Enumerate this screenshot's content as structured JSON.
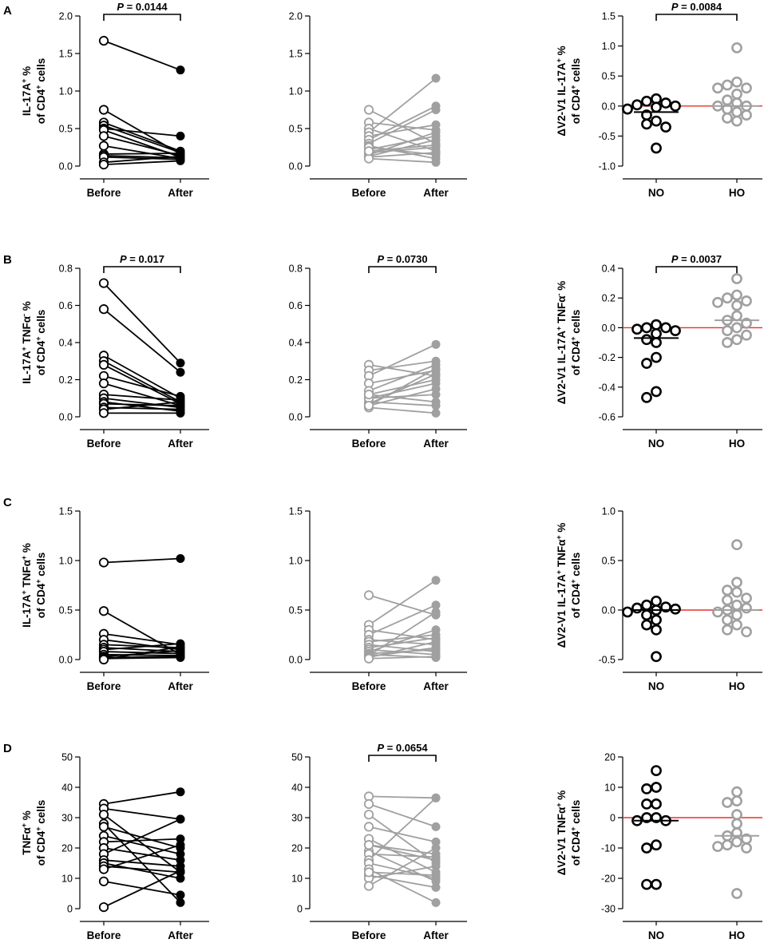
{
  "colors": {
    "no": "#000000",
    "ho": "#a0a0a0",
    "zero_line": "#e8302a"
  },
  "panels": [
    {
      "letter": "A",
      "ylabel_lines": [
        [
          "IL-17A",
          "+",
          " %"
        ],
        [
          "of CD4",
          "+",
          " cells"
        ]
      ],
      "delta_ylabel_lines": [
        [
          "ΔV2-V1 IL-17A",
          "+",
          " %"
        ],
        [
          "of CD4",
          "+",
          " cells"
        ]
      ],
      "no_pairs": {
        "ylim": [
          0,
          2.0
        ],
        "ticks": [
          "0.0",
          "0.5",
          "1.0",
          "1.5",
          "2.0"
        ],
        "categories": [
          "Before",
          "After"
        ],
        "pvalue": "0.0144",
        "pairs": [
          [
            1.67,
            1.28
          ],
          [
            0.75,
            0.16
          ],
          [
            0.58,
            0.2
          ],
          [
            0.54,
            0.18
          ],
          [
            0.5,
            0.4
          ],
          [
            0.48,
            0.12
          ],
          [
            0.4,
            0.14
          ],
          [
            0.27,
            0.1
          ],
          [
            0.16,
            0.17
          ],
          [
            0.14,
            0.11
          ],
          [
            0.12,
            0.09
          ],
          [
            0.05,
            0.13
          ],
          [
            0.02,
            0.07
          ]
        ]
      },
      "ho_pairs": {
        "ylim": [
          0,
          2.0
        ],
        "ticks": [
          "0.0",
          "0.5",
          "1.0",
          "1.5",
          "2.0"
        ],
        "categories": [
          "Before",
          "After"
        ],
        "pvalue": "",
        "pairs": [
          [
            0.75,
            0.3
          ],
          [
            0.58,
            0.48
          ],
          [
            0.5,
            0.2
          ],
          [
            0.45,
            1.17
          ],
          [
            0.4,
            0.55
          ],
          [
            0.35,
            0.8
          ],
          [
            0.3,
            0.75
          ],
          [
            0.27,
            0.1
          ],
          [
            0.22,
            0.4
          ],
          [
            0.18,
            0.25
          ],
          [
            0.15,
            0.45
          ],
          [
            0.13,
            0.35
          ],
          [
            0.12,
            0.18
          ],
          [
            0.1,
            0.05
          ],
          [
            0.25,
            0.15
          ],
          [
            0.2,
            0.28
          ]
        ]
      },
      "delta": {
        "ylim": [
          -1.0,
          1.5
        ],
        "ticks": [
          "-1.0",
          "-0.5",
          "0.0",
          "0.5",
          "1.0",
          "1.5"
        ],
        "categories": [
          "NO",
          "HO"
        ],
        "pvalue": "0.0084",
        "no_values": [
          0.12,
          0.08,
          0.05,
          0.02,
          0.0,
          -0.02,
          -0.05,
          -0.15,
          -0.25,
          -0.3,
          -0.35,
          -0.7
        ],
        "ho_values": [
          0.97,
          0.4,
          0.35,
          0.3,
          0.3,
          0.2,
          0.1,
          0.05,
          0.0,
          0.0,
          -0.05,
          -0.1,
          -0.15,
          -0.2,
          -0.25
        ],
        "no_median": -0.1,
        "ho_median": 0.0
      }
    },
    {
      "letter": "B",
      "ylabel_lines": [
        [
          "IL-17A",
          "+",
          " TNFα",
          "-",
          " %"
        ],
        [
          "of CD4",
          "+",
          " cells"
        ]
      ],
      "delta_ylabel_lines": [
        [
          "ΔV2-V1 IL-17A",
          "+",
          " TNFα",
          "-",
          " %"
        ],
        [
          "of CD4",
          "+",
          " cells"
        ]
      ],
      "no_pairs": {
        "ylim": [
          0,
          0.8
        ],
        "ticks": [
          "0.0",
          "0.2",
          "0.4",
          "0.6",
          "0.8"
        ],
        "categories": [
          "Before",
          "After"
        ],
        "pvalue": "0.017",
        "pairs": [
          [
            0.72,
            0.29
          ],
          [
            0.58,
            0.24
          ],
          [
            0.33,
            0.1
          ],
          [
            0.3,
            0.08
          ],
          [
            0.28,
            0.07
          ],
          [
            0.22,
            0.11
          ],
          [
            0.18,
            0.06
          ],
          [
            0.12,
            0.09
          ],
          [
            0.1,
            0.05
          ],
          [
            0.08,
            0.03
          ],
          [
            0.07,
            0.06
          ],
          [
            0.05,
            0.04
          ],
          [
            0.04,
            0.08
          ],
          [
            0.02,
            0.02
          ]
        ]
      },
      "ho_pairs": {
        "ylim": [
          0,
          0.8
        ],
        "ticks": [
          "0.0",
          "0.2",
          "0.4",
          "0.6",
          "0.8"
        ],
        "categories": [
          "Before",
          "After"
        ],
        "pvalue": "0.0730",
        "pairs": [
          [
            0.28,
            0.22
          ],
          [
            0.25,
            0.3
          ],
          [
            0.22,
            0.39
          ],
          [
            0.18,
            0.25
          ],
          [
            0.14,
            0.28
          ],
          [
            0.12,
            0.2
          ],
          [
            0.1,
            0.18
          ],
          [
            0.08,
            0.06
          ],
          [
            0.07,
            0.23
          ],
          [
            0.06,
            0.15
          ],
          [
            0.05,
            0.02
          ],
          [
            0.1,
            0.12
          ],
          [
            0.06,
            0.26
          ],
          [
            0.12,
            0.08
          ]
        ]
      },
      "delta": {
        "ylim": [
          -0.6,
          0.4
        ],
        "ticks": [
          "-0.6",
          "-0.4",
          "-0.2",
          "0.0",
          "0.2",
          "0.4"
        ],
        "categories": [
          "NO",
          "HO"
        ],
        "pvalue": "0.0037",
        "no_values": [
          0.02,
          0.0,
          0.0,
          -0.01,
          -0.02,
          -0.04,
          -0.08,
          -0.1,
          -0.2,
          -0.24,
          -0.43,
          -0.47
        ],
        "ho_values": [
          0.33,
          0.22,
          0.2,
          0.18,
          0.17,
          0.15,
          0.08,
          0.05,
          0.03,
          0.0,
          -0.02,
          -0.05,
          -0.08,
          -0.1
        ],
        "no_median": -0.07,
        "ho_median": 0.05
      }
    },
    {
      "letter": "C",
      "ylabel_lines": [
        [
          "IL-17A",
          "+",
          " TNFα",
          "+",
          " %"
        ],
        [
          "of CD4",
          "+",
          " cells"
        ]
      ],
      "delta_ylabel_lines": [
        [
          "ΔV2-V1 IL-17A",
          "+",
          " TNFα",
          "+",
          " %"
        ],
        [
          "of CD4",
          "+",
          " cells"
        ]
      ],
      "no_pairs": {
        "ylim": [
          0,
          1.5
        ],
        "ticks": [
          "0.0",
          "0.5",
          "1.0",
          "1.5"
        ],
        "categories": [
          "Before",
          "After"
        ],
        "pvalue": "",
        "pairs": [
          [
            0.98,
            1.02
          ],
          [
            0.49,
            0.05
          ],
          [
            0.26,
            0.15
          ],
          [
            0.2,
            0.1
          ],
          [
            0.15,
            0.12
          ],
          [
            0.12,
            0.08
          ],
          [
            0.1,
            0.16
          ],
          [
            0.08,
            0.06
          ],
          [
            0.05,
            0.04
          ],
          [
            0.03,
            0.09
          ],
          [
            0.02,
            0.03
          ],
          [
            0.01,
            0.02
          ],
          [
            0.0,
            0.13
          ]
        ]
      },
      "ho_pairs": {
        "ylim": [
          0,
          1.5
        ],
        "ticks": [
          "0.0",
          "0.5",
          "1.0",
          "1.5"
        ],
        "categories": [
          "Before",
          "After"
        ],
        "pvalue": "",
        "pairs": [
          [
            0.65,
            0.45
          ],
          [
            0.35,
            0.8
          ],
          [
            0.3,
            0.2
          ],
          [
            0.25,
            0.55
          ],
          [
            0.2,
            0.15
          ],
          [
            0.18,
            0.25
          ],
          [
            0.15,
            0.08
          ],
          [
            0.12,
            0.22
          ],
          [
            0.1,
            0.05
          ],
          [
            0.08,
            0.3
          ],
          [
            0.06,
            0.1
          ],
          [
            0.05,
            0.02
          ],
          [
            0.04,
            0.48
          ],
          [
            0.03,
            0.12
          ],
          [
            0.02,
            0.18
          ],
          [
            0.01,
            0.03
          ]
        ]
      },
      "delta": {
        "ylim": [
          -0.5,
          1.0
        ],
        "ticks": [
          "-0.5",
          "0.0",
          "0.5",
          "1.0"
        ],
        "categories": [
          "NO",
          "HO"
        ],
        "pvalue": "",
        "no_values": [
          0.09,
          0.05,
          0.03,
          0.02,
          0.01,
          0.0,
          -0.02,
          -0.05,
          -0.1,
          -0.15,
          -0.2,
          -0.47
        ],
        "ho_values": [
          0.66,
          0.28,
          0.2,
          0.18,
          0.12,
          0.1,
          0.05,
          0.02,
          0.0,
          -0.02,
          -0.05,
          -0.1,
          -0.15,
          -0.2,
          -0.22
        ],
        "no_median": 0.0,
        "ho_median": 0.0
      }
    },
    {
      "letter": "D",
      "ylabel_lines": [
        [
          "TNFα",
          "+",
          " %"
        ],
        [
          "of CD4",
          "+",
          " cells"
        ]
      ],
      "delta_ylabel_lines": [
        [
          "ΔV2-V1 TNFα",
          "+",
          " %"
        ],
        [
          "of CD4",
          "+",
          " cells"
        ]
      ],
      "no_pairs": {
        "ylim": [
          0,
          50
        ],
        "ticks": [
          "0",
          "10",
          "20",
          "30",
          "40",
          "50"
        ],
        "categories": [
          "Before",
          "After"
        ],
        "pvalue": "",
        "pairs": [
          [
            34.5,
            38.5
          ],
          [
            33,
            29.5
          ],
          [
            31,
            12
          ],
          [
            28,
            2
          ],
          [
            27,
            20
          ],
          [
            24,
            18
          ],
          [
            22,
            23
          ],
          [
            20,
            16
          ],
          [
            18,
            29.5
          ],
          [
            16,
            14
          ],
          [
            15,
            10
          ],
          [
            14,
            12
          ],
          [
            13,
            21
          ],
          [
            9,
            4.5
          ],
          [
            0.5,
            12.5
          ]
        ]
      },
      "ho_pairs": {
        "ylim": [
          0,
          50
        ],
        "ticks": [
          "0",
          "10",
          "20",
          "30",
          "40",
          "50"
        ],
        "categories": [
          "Before",
          "After"
        ],
        "pvalue": "0.0654",
        "pairs": [
          [
            37,
            36.5
          ],
          [
            34.5,
            27
          ],
          [
            31,
            15
          ],
          [
            27,
            22
          ],
          [
            23,
            12
          ],
          [
            21,
            16
          ],
          [
            19,
            9
          ],
          [
            18,
            17
          ],
          [
            16,
            36.5
          ],
          [
            15,
            10
          ],
          [
            13,
            2
          ],
          [
            11,
            7
          ],
          [
            10,
            14
          ],
          [
            7.5,
            20
          ],
          [
            12,
            11
          ],
          [
            21,
            18
          ]
        ]
      },
      "delta": {
        "ylim": [
          -30,
          20
        ],
        "ticks": [
          "-30",
          "-20",
          "-10",
          "0",
          "10",
          "20"
        ],
        "categories": [
          "NO",
          "HO"
        ],
        "pvalue": "",
        "no_values": [
          15.5,
          10,
          9.5,
          4.5,
          4.5,
          0,
          0,
          -1,
          -1,
          -9,
          -10,
          -22,
          -22
        ],
        "ho_values": [
          8.5,
          5.5,
          5,
          1,
          -2,
          -5,
          -6,
          -7,
          -8,
          -9,
          -9.5,
          -10,
          -25
        ],
        "no_median": -1.0,
        "ho_median": -6.0
      }
    }
  ]
}
